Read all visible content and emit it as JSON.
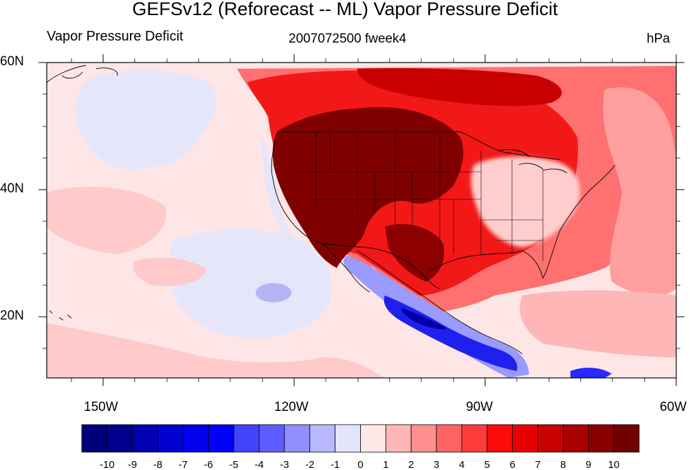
{
  "figure": {
    "title": "GEFSv12 (Reforecast -- ML) Vapor Pressure Deficit",
    "left_string": "Vapor Pressure Deficit",
    "center_string": "2007072500 fweek4",
    "right_string": "hPa"
  },
  "map": {
    "projection": "cylindrical equidistant",
    "lon_range": [
      -159,
      -60
    ],
    "lat_range": [
      10,
      60
    ],
    "lat_tick_labels": [
      "60N",
      "40N",
      "20N"
    ],
    "lon_tick_labels": [
      "150W",
      "120W",
      "90W",
      "60W"
    ],
    "features": [
      "coastlines",
      "US state boundaries",
      "country boundaries"
    ]
  },
  "colorbar": {
    "labels": [
      "-10",
      "-9",
      "-8",
      "-7",
      "-6",
      "-5",
      "-4",
      "-3",
      "-2",
      "-1",
      "0",
      "1",
      "2",
      "3",
      "4",
      "5",
      "6",
      "7",
      "8",
      "9",
      "10"
    ],
    "colors": [
      "#00007a",
      "#00008c",
      "#0000b0",
      "#0000d0",
      "#0000ee",
      "#0000ff",
      "#4444ff",
      "#5c5cff",
      "#8f8fff",
      "#b8b8ff",
      "#e4e4fd",
      "#ffe8e8",
      "#ffb6b6",
      "#ff8e8e",
      "#ff6464",
      "#ff3c3c",
      "#ff0a0a",
      "#e80000",
      "#c80000",
      "#a80000",
      "#8a0000",
      "#720000"
    ]
  }
}
